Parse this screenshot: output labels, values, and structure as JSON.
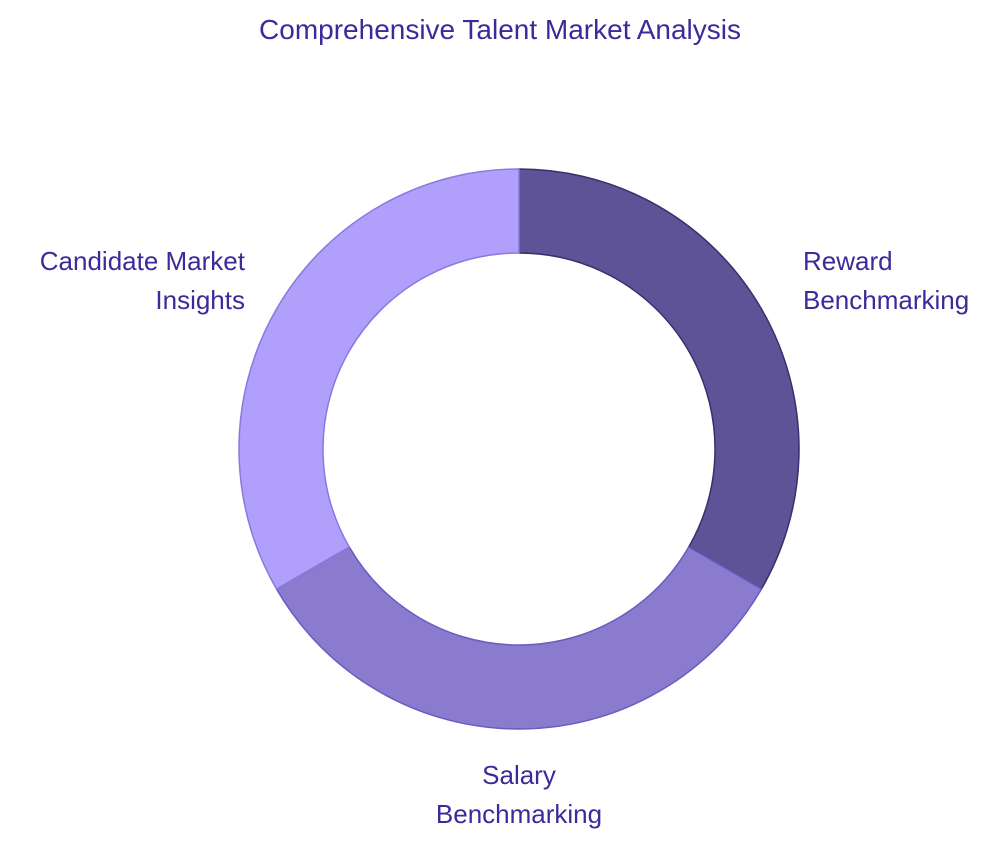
{
  "chart_data": {
    "type": "donut",
    "title": "Comprehensive Talent Market Analysis",
    "categories": [
      "Reward Benchmarking",
      "Salary Benchmarking",
      "Candidate Market Insights"
    ],
    "values": [
      33.3,
      33.3,
      33.3
    ],
    "colors": [
      "#5f5398",
      "#8b7bcf",
      "#b19ffc"
    ]
  }
}
